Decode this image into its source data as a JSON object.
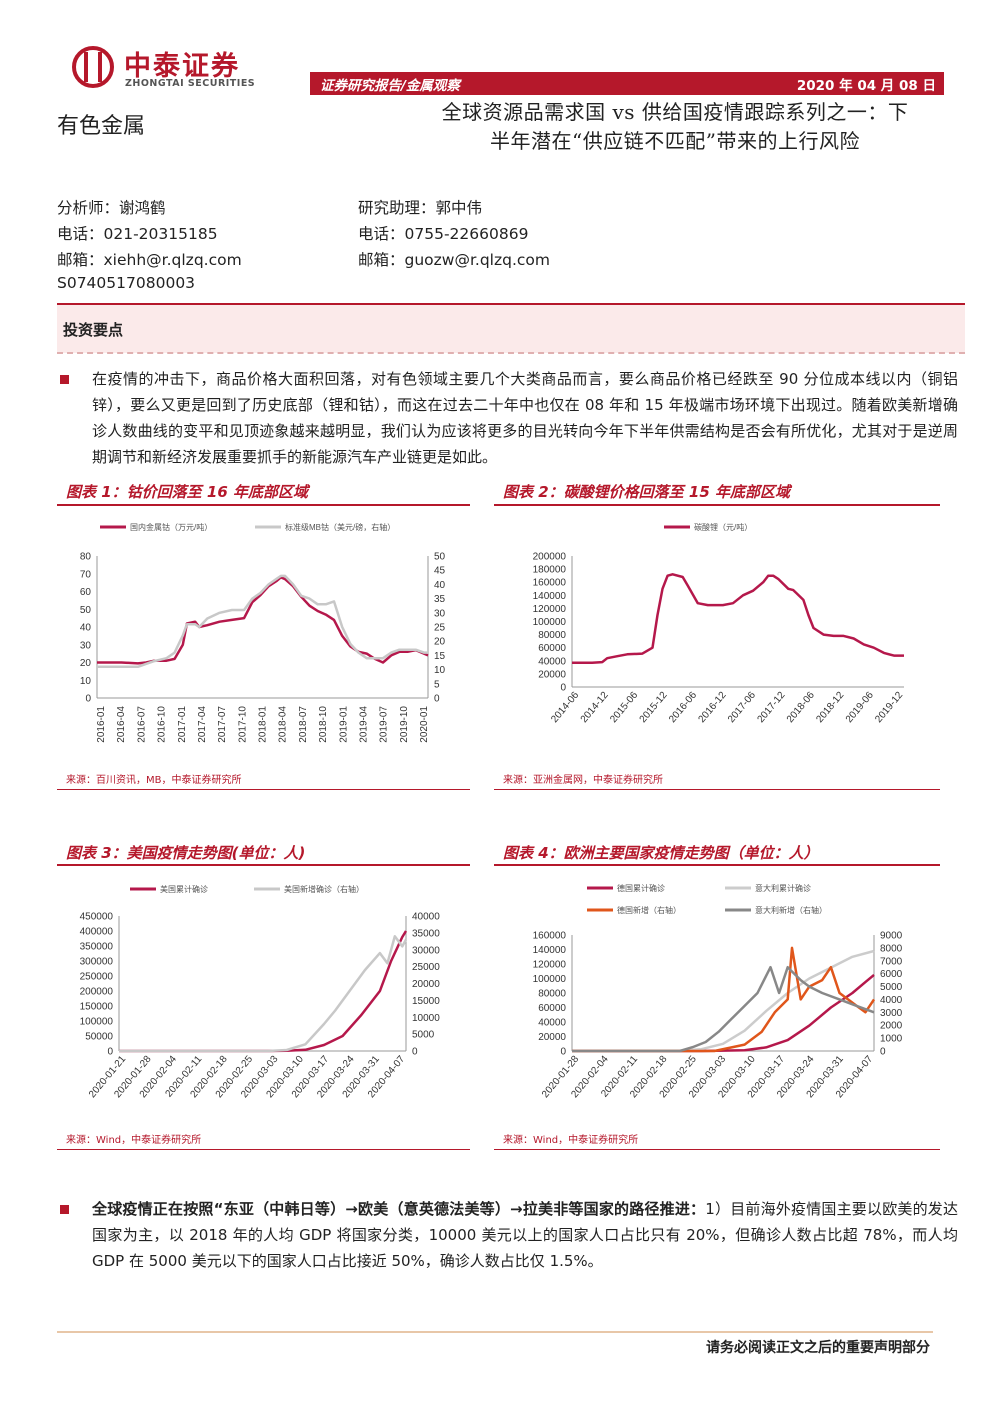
{
  "header": {
    "logo_cn": "中泰证券",
    "logo_en": "ZHONGTAI SECURITIES",
    "category": "证券研究报告/金属观察",
    "date": "2020 年 04 月 08 日",
    "industry": "有色金属",
    "title_line1": "全球资源品需求国 vs 供给国疫情跟踪系列之一：下",
    "title_line2": "半年潜在“供应链不匹配”带来的上行风险"
  },
  "analysts": {
    "left": [
      "分析师：谢鸿鹤",
      "电话：021-20315185",
      "邮箱：xiehh@r.qlzq.com",
      "S0740517080003"
    ],
    "right": [
      "研究助理：郭中伟",
      "电话：0755-22660869",
      "邮箱：guozw@r.qlzq.com"
    ]
  },
  "key_points": {
    "title": "投资要点",
    "para1": "在疫情的冲击下，商品价格大面积回落，对有色领域主要几个大类商品而言，要么商品价格已经跌至 90 分位成本线以内（铜铝锌），要么又更是回到了历史底部（锂和钴），而这在过去二十年中也仅在 08 年和 15 年极端市场环境下出现过。随着欧美新增确诊人数曲线的变平和见顶迹象越来越明显，我们认为应该将更多的目光转向今年下半年供需结构是否会有所优化，尤其对于是逆周期调节和新经济发展重要抓手的新能源汽车产业链更是如此。",
    "para2_bold": "全球疫情正在按照“东亚（中韩日等）→欧美（意英德法美等）→拉美非等国家的路径推进：",
    "para2_rest": "1）目前海外疫情国主要以欧美的发达国家为主，以 2018 年的人均 GDP 将国家分类，10000 美元以上的国家人口占比只有 20%，但确诊人数占比超 78%，而人均 GDP 在 5000 美元以下的国家人口占比接近 50%，确诊人数占比仅 1.5%。"
  },
  "figures": [
    {
      "title": "图表 1：钴价回落至 16 年底部区域",
      "source": "来源：百川资讯，MB，中泰证券研究所"
    },
    {
      "title": "图表 2：碳酸锂价格回落至 15 年底部区域",
      "source": "来源：亚洲金属网，中泰证券研究所"
    },
    {
      "title": "图表 3：美国疫情走势图(单位：人)",
      "source": "来源：Wind，中泰证券研究所"
    },
    {
      "title": "图表 4：欧洲主要国家疫情走势图（单位：人）",
      "source": "来源：Wind，中泰证券研究所"
    }
  ],
  "chart_data": [
    {
      "type": "line",
      "legend": [
        "国内金属钴（万元/吨）",
        "标准级MB钴（美元/磅，右轴）"
      ],
      "x_ticks": [
        "2016-01",
        "2016-04",
        "2016-07",
        "2016-10",
        "2017-01",
        "2017-04",
        "2017-07",
        "2017-10",
        "2018-01",
        "2018-04",
        "2018-07",
        "2018-10",
        "2019-01",
        "2019-04",
        "2019-07",
        "2019-10",
        "2020-01"
      ],
      "y_ticks": [
        "80",
        "70",
        "60",
        "50",
        "40",
        "30",
        "20",
        "10",
        "0"
      ],
      "y2_ticks": [
        "50",
        "45",
        "40",
        "35",
        "30",
        "25",
        "20",
        "15",
        "10",
        "5",
        "0"
      ],
      "ylim": [
        0,
        80
      ],
      "y2lim": [
        0,
        50
      ],
      "series": [
        {
          "name": "国内金属钴（万元/吨）",
          "color": "#b5184b",
          "values": [
            [
              0,
              20
            ],
            [
              6,
              20
            ],
            [
              10,
              19.5
            ],
            [
              12,
              20
            ],
            [
              14,
              21
            ],
            [
              17,
              21
            ],
            [
              19,
              22
            ],
            [
              21,
              30
            ],
            [
              22,
              42
            ],
            [
              24,
              43
            ],
            [
              25,
              40
            ],
            [
              27,
              41
            ],
            [
              30,
              43
            ],
            [
              33,
              44
            ],
            [
              36,
              45
            ],
            [
              38,
              54
            ],
            [
              40,
              58
            ],
            [
              42,
              63
            ],
            [
              44,
              66
            ],
            [
              45,
              68
            ],
            [
              46,
              67
            ],
            [
              48,
              63
            ],
            [
              50,
              57
            ],
            [
              52,
              52
            ],
            [
              54,
              49
            ],
            [
              56,
              47
            ],
            [
              58,
              44
            ],
            [
              60,
              35
            ],
            [
              62,
              29
            ],
            [
              64,
              26
            ],
            [
              66,
              25
            ],
            [
              68,
              22
            ],
            [
              70,
              20
            ],
            [
              72,
              24
            ],
            [
              74,
              26
            ],
            [
              76,
              26
            ],
            [
              78,
              27
            ],
            [
              80,
              25
            ],
            [
              81,
              24
            ]
          ]
        },
        {
          "name": "标准级MB钴（美元/磅，右轴）",
          "color": "#c8c8c8",
          "values": [
            [
              0,
              11
            ],
            [
              6,
              11
            ],
            [
              10,
              11
            ],
            [
              12,
              12
            ],
            [
              14,
              13
            ],
            [
              17,
              14
            ],
            [
              19,
              16
            ],
            [
              21,
              22
            ],
            [
              22,
              26
            ],
            [
              24,
              26
            ],
            [
              25,
              25
            ],
            [
              27,
              28
            ],
            [
              30,
              30
            ],
            [
              33,
              31
            ],
            [
              36,
              31
            ],
            [
              38,
              35
            ],
            [
              40,
              37
            ],
            [
              42,
              40
            ],
            [
              44,
              42
            ],
            [
              45,
              43
            ],
            [
              46,
              43
            ],
            [
              48,
              40
            ],
            [
              50,
              36
            ],
            [
              52,
              35
            ],
            [
              54,
              33
            ],
            [
              56,
              33
            ],
            [
              58,
              34
            ],
            [
              60,
              25
            ],
            [
              62,
              19
            ],
            [
              64,
              16
            ],
            [
              66,
              14
            ],
            [
              68,
              14
            ],
            [
              70,
              14
            ],
            [
              72,
              16
            ],
            [
              74,
              17
            ],
            [
              76,
              17
            ],
            [
              78,
              17
            ],
            [
              80,
              16
            ],
            [
              81,
              16
            ]
          ]
        }
      ]
    },
    {
      "type": "line",
      "legend": [
        "碳酸锂（元/吨）"
      ],
      "x_ticks": [
        "2014-06",
        "2014-12",
        "2015-06",
        "2015-12",
        "2016-06",
        "2016-12",
        "2017-06",
        "2017-12",
        "2018-06",
        "2018-12",
        "2019-06",
        "2019-12"
      ],
      "y_ticks": [
        "200000",
        "180000",
        "160000",
        "140000",
        "120000",
        "100000",
        "80000",
        "60000",
        "40000",
        "20000",
        "0"
      ],
      "ylim": [
        0,
        200000
      ],
      "series": [
        {
          "name": "碳酸锂（元/吨）",
          "color": "#b5184b",
          "values": [
            [
              0,
              37000
            ],
            [
              4,
              37000
            ],
            [
              6,
              38000
            ],
            [
              7,
              44000
            ],
            [
              9,
              47000
            ],
            [
              11,
              50000
            ],
            [
              14,
              51000
            ],
            [
              16,
              60000
            ],
            [
              17,
              110000
            ],
            [
              18,
              150000
            ],
            [
              19,
              170000
            ],
            [
              20,
              172000
            ],
            [
              22,
              168000
            ],
            [
              23,
              155000
            ],
            [
              25,
              128000
            ],
            [
              27,
              125000
            ],
            [
              30,
              125000
            ],
            [
              32,
              128000
            ],
            [
              34,
              140000
            ],
            [
              36,
              147000
            ],
            [
              38,
              160000
            ],
            [
              39,
              170000
            ],
            [
              40,
              170000
            ],
            [
              41,
              165000
            ],
            [
              43,
              150000
            ],
            [
              44,
              148000
            ],
            [
              46,
              133000
            ],
            [
              47,
              110000
            ],
            [
              48,
              90000
            ],
            [
              50,
              80000
            ],
            [
              52,
              78000
            ],
            [
              54,
              78000
            ],
            [
              56,
              74000
            ],
            [
              58,
              65000
            ],
            [
              60,
              60000
            ],
            [
              62,
              52000
            ],
            [
              64,
              48000
            ],
            [
              66,
              48000
            ]
          ]
        }
      ]
    },
    {
      "type": "line",
      "legend": [
        "美国累计确诊",
        "美国新增确诊（右轴）"
      ],
      "x_ticks": [
        "2020-01-21",
        "2020-01-28",
        "2020-02-04",
        "2020-02-11",
        "2020-02-18",
        "2020-02-25",
        "2020-03-03",
        "2020-03-10",
        "2020-03-17",
        "2020-03-24",
        "2020-03-31",
        "2020-04-07"
      ],
      "y_ticks": [
        "450000",
        "400000",
        "350000",
        "300000",
        "250000",
        "200000",
        "150000",
        "100000",
        "50000",
        "0"
      ],
      "y2_ticks": [
        "40000",
        "35000",
        "30000",
        "25000",
        "20000",
        "15000",
        "10000",
        "5000",
        "0"
      ],
      "ylim": [
        0,
        450000
      ],
      "y2lim": [
        0,
        40000
      ],
      "series": [
        {
          "name": "美国累计确诊",
          "color": "#b5184b",
          "values": [
            [
              0,
              0
            ],
            [
              40,
              0
            ],
            [
              45,
              500
            ],
            [
              50,
              4000
            ],
            [
              55,
              20000
            ],
            [
              60,
              50000
            ],
            [
              65,
              120000
            ],
            [
              70,
              200000
            ],
            [
              73,
              300000
            ],
            [
              76,
              380000
            ],
            [
              77,
              400000
            ]
          ]
        },
        {
          "name": "美国新增确诊（右轴）",
          "color": "#c8c8c8",
          "values": [
            [
              0,
              0
            ],
            [
              40,
              0
            ],
            [
              45,
              300
            ],
            [
              50,
              2000
            ],
            [
              55,
              8000
            ],
            [
              58,
              12000
            ],
            [
              62,
              18000
            ],
            [
              66,
              24000
            ],
            [
              70,
              29000
            ],
            [
              72,
              26000
            ],
            [
              74,
              34000
            ],
            [
              76,
              31000
            ],
            [
              77,
              33000
            ]
          ]
        }
      ]
    },
    {
      "type": "line",
      "legend": [
        "德国累计确诊",
        "意大利累计确诊",
        "德国新增（右轴）",
        "意大利新增（右轴）"
      ],
      "x_ticks": [
        "2020-01-28",
        "2020-02-04",
        "2020-02-11",
        "2020-02-18",
        "2020-02-25",
        "2020-03-03",
        "2020-03-10",
        "2020-03-17",
        "2020-03-24",
        "2020-03-31",
        "2020-04-07"
      ],
      "y_ticks": [
        "160000",
        "140000",
        "120000",
        "100000",
        "80000",
        "60000",
        "40000",
        "20000",
        "0"
      ],
      "y2_ticks": [
        "9000",
        "8000",
        "7000",
        "6000",
        "5000",
        "4000",
        "3000",
        "2000",
        "1000",
        "0"
      ],
      "ylim": [
        0,
        160000
      ],
      "y2lim": [
        0,
        9000
      ],
      "series": [
        {
          "name": "德国累计确诊",
          "color": "#b5184b",
          "values": [
            [
              0,
              0
            ],
            [
              30,
              0
            ],
            [
              40,
              1000
            ],
            [
              45,
              5000
            ],
            [
              50,
              15000
            ],
            [
              55,
              35000
            ],
            [
              60,
              60000
            ],
            [
              65,
              80000
            ],
            [
              68,
              95000
            ],
            [
              70,
              105000
            ]
          ]
        },
        {
          "name": "意大利累计确诊",
          "color": "#cccccc",
          "values": [
            [
              0,
              0
            ],
            [
              25,
              500
            ],
            [
              30,
              2500
            ],
            [
              35,
              10000
            ],
            [
              40,
              28000
            ],
            [
              45,
              55000
            ],
            [
              50,
              80000
            ],
            [
              55,
              100000
            ],
            [
              60,
              115000
            ],
            [
              65,
              130000
            ],
            [
              70,
              138000
            ]
          ]
        },
        {
          "name": "德国新增（右轴）",
          "color": "#e0561b",
          "values": [
            [
              0,
              0
            ],
            [
              33,
              0
            ],
            [
              40,
              500
            ],
            [
              44,
              1500
            ],
            [
              47,
              3000
            ],
            [
              50,
              4000
            ],
            [
              51,
              8000
            ],
            [
              53,
              4000
            ],
            [
              55,
              5000
            ],
            [
              58,
              5500
            ],
            [
              60,
              6500
            ],
            [
              62,
              4500
            ],
            [
              66,
              3500
            ],
            [
              68,
              3000
            ],
            [
              70,
              4000
            ]
          ]
        },
        {
          "name": "意大利新增（右轴）",
          "color": "#888888",
          "values": [
            [
              0,
              0
            ],
            [
              25,
              0
            ],
            [
              28,
              300
            ],
            [
              31,
              700
            ],
            [
              34,
              1500
            ],
            [
              37,
              2500
            ],
            [
              40,
              3500
            ],
            [
              43,
              4500
            ],
            [
              46,
              6500
            ],
            [
              48,
              4500
            ],
            [
              50,
              6500
            ],
            [
              53,
              5500
            ],
            [
              55,
              5000
            ],
            [
              58,
              4500
            ],
            [
              62,
              4000
            ],
            [
              66,
              3500
            ],
            [
              70,
              3000
            ]
          ]
        }
      ]
    }
  ],
  "footer": "请务必阅读正文之后的重要声明部分"
}
